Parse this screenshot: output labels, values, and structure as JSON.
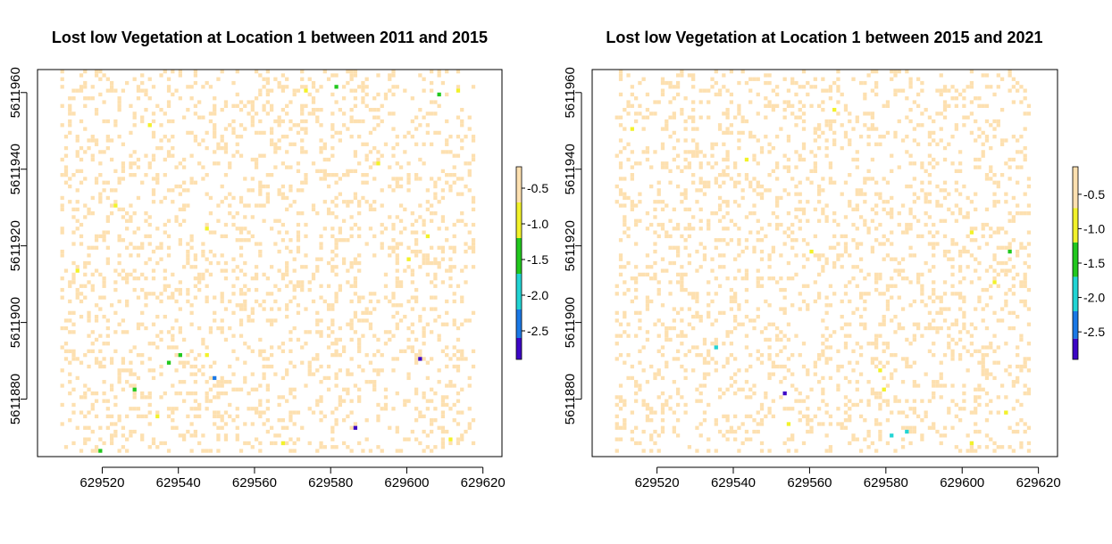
{
  "chart_data": [
    {
      "type": "heatmap",
      "title": "Lost low Vegetation at Location 1 between 2011 and 2015",
      "xlim": [
        629503,
        629625
      ],
      "ylim": [
        5611865,
        5611966
      ],
      "x_ticks": [
        629520,
        629540,
        629560,
        629580,
        629600,
        629620
      ],
      "y_ticks": [
        5611880,
        5611900,
        5611920,
        5611940,
        5611960
      ],
      "legend": {
        "placement": "right",
        "range": [
          -2.9,
          -0.2
        ],
        "ticks": [
          -0.5,
          -1.0,
          -1.5,
          -2.0,
          -2.5
        ],
        "tick_labels": [
          "-0.5",
          "-1.0",
          "-1.5",
          "-2.0",
          "-2.5"
        ],
        "bands": [
          {
            "from": -0.2,
            "to": -0.7,
            "color": "#fde0b0"
          },
          {
            "from": -0.7,
            "to": -1.2,
            "color": "#f2f22a"
          },
          {
            "from": -1.2,
            "to": -1.7,
            "color": "#22c81e"
          },
          {
            "from": -1.7,
            "to": -2.2,
            "color": "#22d4d4"
          },
          {
            "from": -2.2,
            "to": -2.6,
            "color": "#1a78e6"
          },
          {
            "from": -2.6,
            "to": -2.9,
            "color": "#3d06c6"
          }
        ]
      },
      "cells": [
        {
          "x": 629581,
          "y": 5611961,
          "value": -1.4
        },
        {
          "x": 629608,
          "y": 5611959,
          "value": -1.4
        },
        {
          "x": 629613,
          "y": 5611960,
          "value": -1.2
        },
        {
          "x": 629537,
          "y": 5611889,
          "value": -1.5
        },
        {
          "x": 629540,
          "y": 5611891,
          "value": -1.5
        },
        {
          "x": 629528,
          "y": 5611882,
          "value": -1.4
        },
        {
          "x": 629519,
          "y": 5611866,
          "value": -1.4
        },
        {
          "x": 629549,
          "y": 5611885,
          "value": -2.4
        },
        {
          "x": 629603,
          "y": 5611890,
          "value": -2.8
        },
        {
          "x": 629586,
          "y": 5611872,
          "value": -2.8
        },
        {
          "x": 629547,
          "y": 5611891,
          "value": -1.1
        },
        {
          "x": 629523,
          "y": 5611930,
          "value": -1.0
        },
        {
          "x": 629532,
          "y": 5611951,
          "value": -1.0
        },
        {
          "x": 629605,
          "y": 5611922,
          "value": -1.0
        },
        {
          "x": 629600,
          "y": 5611916,
          "value": -1.0
        },
        {
          "x": 629592,
          "y": 5611941,
          "value": -1.0
        },
        {
          "x": 629573,
          "y": 5611960,
          "value": -1.0
        },
        {
          "x": 629547,
          "y": 5611924,
          "value": -1.0
        },
        {
          "x": 629513,
          "y": 5611913,
          "value": -1.0
        },
        {
          "x": 629534,
          "y": 5611875,
          "value": -1.0
        },
        {
          "x": 629567,
          "y": 5611868,
          "value": -1.0
        },
        {
          "x": 629611,
          "y": 5611869,
          "value": -1.0
        }
      ]
    },
    {
      "type": "heatmap",
      "title": "Lost low Vegetation at Location 1 between 2015 and 2021",
      "xlim": [
        629503,
        629625
      ],
      "ylim": [
        5611865,
        5611966
      ],
      "x_ticks": [
        629520,
        629540,
        629560,
        629580,
        629600,
        629620
      ],
      "y_ticks": [
        5611880,
        5611900,
        5611920,
        5611940,
        5611960
      ],
      "legend": {
        "placement": "right",
        "range": [
          -2.9,
          -0.1
        ],
        "ticks": [
          -0.5,
          -1.0,
          -1.5,
          -2.0,
          -2.5
        ],
        "tick_labels": [
          "-0.5",
          "-1.0",
          "-1.5",
          "-2.0",
          "-2.5"
        ],
        "bands": [
          {
            "from": -0.1,
            "to": -0.7,
            "color": "#fde0b0"
          },
          {
            "from": -0.7,
            "to": -1.2,
            "color": "#f2f22a"
          },
          {
            "from": -1.2,
            "to": -1.7,
            "color": "#22c81e"
          },
          {
            "from": -1.7,
            "to": -2.2,
            "color": "#22d4d4"
          },
          {
            "from": -2.2,
            "to": -2.6,
            "color": "#1a78e6"
          },
          {
            "from": -2.6,
            "to": -2.9,
            "color": "#3d06c6"
          }
        ]
      },
      "cells": [
        {
          "x": 629612,
          "y": 5611918,
          "value": -1.4
        },
        {
          "x": 629535,
          "y": 5611893,
          "value": -1.9
        },
        {
          "x": 629581,
          "y": 5611870,
          "value": -1.9
        },
        {
          "x": 629585,
          "y": 5611871,
          "value": -1.9
        },
        {
          "x": 629553,
          "y": 5611881,
          "value": -2.8
        },
        {
          "x": 629543,
          "y": 5611942,
          "value": -1.0
        },
        {
          "x": 629602,
          "y": 5611923,
          "value": -1.0
        },
        {
          "x": 629608,
          "y": 5611910,
          "value": -1.0
        },
        {
          "x": 629578,
          "y": 5611887,
          "value": -1.0
        },
        {
          "x": 629579,
          "y": 5611882,
          "value": -1.0
        },
        {
          "x": 629566,
          "y": 5611955,
          "value": -1.0
        },
        {
          "x": 629513,
          "y": 5611950,
          "value": -1.0
        },
        {
          "x": 629560,
          "y": 5611918,
          "value": -1.0
        },
        {
          "x": 629554,
          "y": 5611873,
          "value": -1.0
        },
        {
          "x": 629602,
          "y": 5611868,
          "value": -1.0
        },
        {
          "x": 629611,
          "y": 5611876,
          "value": -1.0
        }
      ]
    }
  ]
}
